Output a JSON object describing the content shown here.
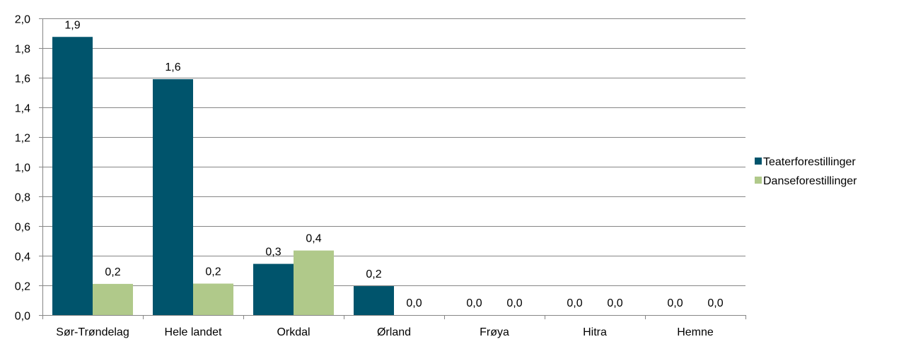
{
  "chart_data": {
    "type": "bar",
    "categories": [
      "Sør-Trøndelag",
      "Hele landet",
      "Orkdal",
      "Ørland",
      "Frøya",
      "Hitra",
      "Hemne"
    ],
    "series": [
      {
        "name": "Teaterforestillinger",
        "color": "#00546C",
        "values": [
          1.875,
          1.59,
          0.345,
          0.195,
          0,
          0,
          0
        ],
        "labels": [
          "1,9",
          "1,6",
          "0,3",
          "0,2",
          "0,0",
          "0,0",
          "0,0"
        ]
      },
      {
        "name": "Danseforestillinger",
        "color": "#B0C98A",
        "values": [
          0.21,
          0.212,
          0.435,
          0,
          0,
          0,
          0
        ],
        "labels": [
          "0,2",
          "0,2",
          "0,4",
          "0,0",
          "0,0",
          "0,0",
          "0,0"
        ]
      }
    ],
    "ylim": [
      0,
      2.0
    ],
    "yticks": [
      0,
      0.2,
      0.4,
      0.6,
      0.8,
      1.0,
      1.2,
      1.4,
      1.6,
      1.8,
      2.0
    ],
    "ytick_labels": [
      "0,0",
      "0,2",
      "0,4",
      "0,6",
      "0,8",
      "1,0",
      "1,2",
      "1,4",
      "1,6",
      "1,8",
      "2,0"
    ],
    "grid": true,
    "legend_position": "right",
    "title": "",
    "xlabel": "",
    "ylabel": ""
  }
}
